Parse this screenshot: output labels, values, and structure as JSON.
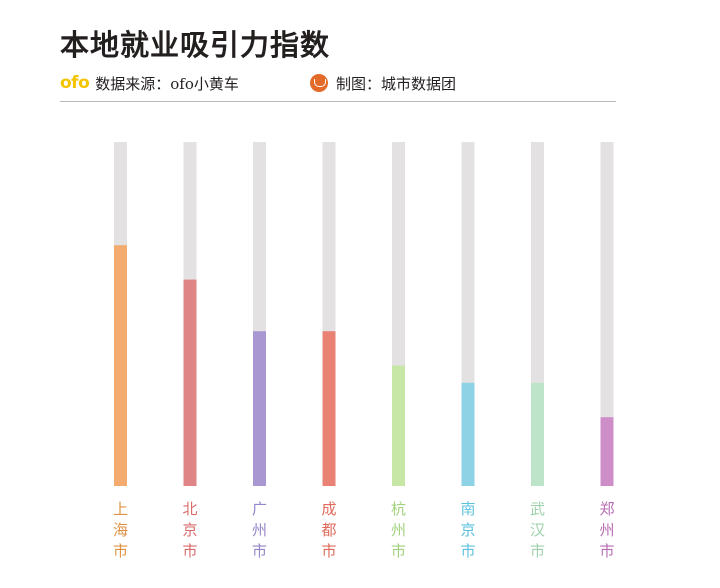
{
  "header": {
    "title": "本地就业吸引力指数",
    "source_logo": "ofo",
    "source_text": "数据来源：ofo小黄车",
    "maker_icon": "city-data-group-icon",
    "maker_text": "制图：城市数据团"
  },
  "chart_data": {
    "type": "bar",
    "orientation": "vertical",
    "title": "本地就业吸引力指数",
    "categories": [
      "上海市",
      "北京市",
      "广州市",
      "成都市",
      "杭州市",
      "南京市",
      "武汉市",
      "郑州市"
    ],
    "values": [
      70,
      60,
      45,
      45,
      35,
      30,
      30,
      20
    ],
    "ylim": [
      0,
      100
    ],
    "xlabel": "",
    "ylabel": "",
    "background_track": true,
    "track_color": "#e3e1e2",
    "colors": [
      "#f3ab70",
      "#df8585",
      "#a997d2",
      "#ea8175",
      "#c7e7a6",
      "#8ed3e5",
      "#bde3c8",
      "#cd8ec8"
    ],
    "label_colors": [
      "#e09244",
      "#d96b6b",
      "#9585c9",
      "#e06a5b",
      "#a3d27e",
      "#5ec2dd",
      "#9fd2ac",
      "#b86db3"
    ]
  }
}
